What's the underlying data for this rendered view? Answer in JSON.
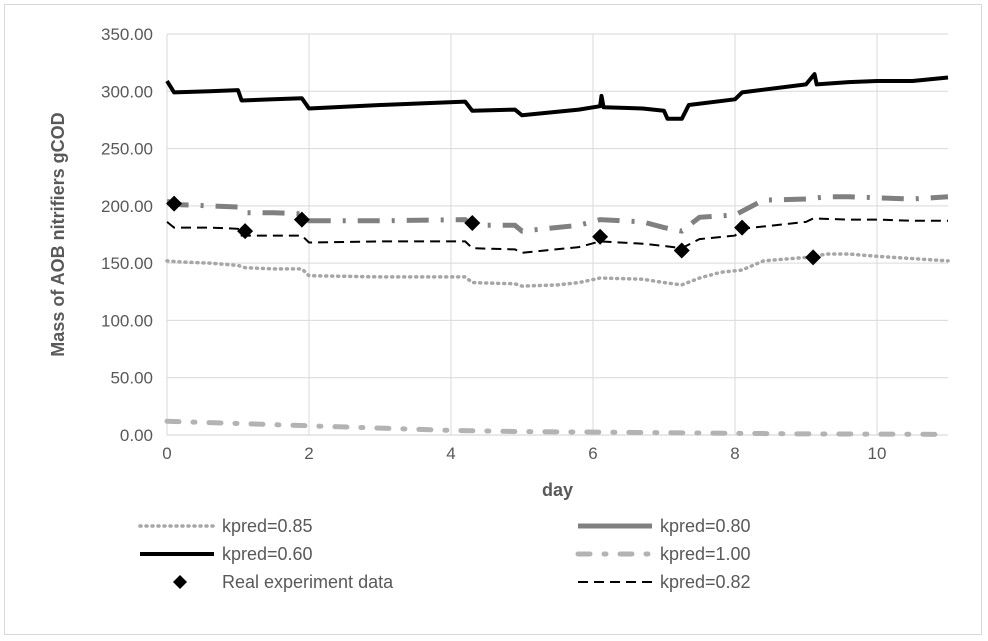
{
  "chart_data": {
    "type": "line",
    "title": "",
    "xlabel": "day",
    "ylabel": "Mass of AOB nitrifiers gCOD",
    "xlim": [
      0,
      11
    ],
    "ylim": [
      0,
      350
    ],
    "x_ticks": [
      0,
      2,
      4,
      6,
      8,
      10
    ],
    "y_ticks": [
      0,
      50,
      100,
      150,
      200,
      250,
      300,
      350
    ],
    "x_tick_labels": [
      "0",
      "2",
      "4",
      "6",
      "8",
      "10"
    ],
    "y_tick_labels": [
      "0.00",
      "50.00",
      "100.00",
      "150.00",
      "200.00",
      "250.00",
      "300.00",
      "350.00"
    ],
    "grid": "vertical and horizontal major gridlines",
    "legend_position": "bottom",
    "series": [
      {
        "name": "kpred=0.85",
        "style": "dotted",
        "color": "#a6a6a6",
        "points": [
          [
            0,
            152
          ],
          [
            0.2,
            151
          ],
          [
            0.6,
            150
          ],
          [
            1.0,
            148
          ],
          [
            1.1,
            146
          ],
          [
            1.5,
            145
          ],
          [
            1.9,
            145
          ],
          [
            2.0,
            139
          ],
          [
            3.0,
            138
          ],
          [
            4.2,
            138
          ],
          [
            4.3,
            133
          ],
          [
            4.9,
            132
          ],
          [
            5.0,
            130
          ],
          [
            5.5,
            131
          ],
          [
            5.8,
            133
          ],
          [
            6.1,
            137
          ],
          [
            6.7,
            136
          ],
          [
            7.0,
            133
          ],
          [
            7.25,
            131
          ],
          [
            7.5,
            137
          ],
          [
            7.8,
            142
          ],
          [
            8.1,
            144
          ],
          [
            8.4,
            152
          ],
          [
            9.0,
            155
          ],
          [
            9.3,
            158
          ],
          [
            9.6,
            158
          ],
          [
            10.0,
            156
          ],
          [
            10.5,
            154
          ],
          [
            11.0,
            152
          ]
        ]
      },
      {
        "name": "kpred=0.80",
        "style": "dash-dot heavy",
        "color": "#808080",
        "points": [
          [
            0,
            204
          ],
          [
            0.2,
            201
          ],
          [
            0.6,
            200
          ],
          [
            1.0,
            199
          ],
          [
            1.1,
            194
          ],
          [
            1.5,
            194
          ],
          [
            1.9,
            193
          ],
          [
            2.0,
            187
          ],
          [
            3.0,
            187
          ],
          [
            4.2,
            188
          ],
          [
            4.3,
            183
          ],
          [
            4.9,
            183
          ],
          [
            5.0,
            178
          ],
          [
            5.8,
            183
          ],
          [
            6.1,
            188
          ],
          [
            6.7,
            186
          ],
          [
            7.0,
            181
          ],
          [
            7.25,
            178
          ],
          [
            7.5,
            190
          ],
          [
            8.0,
            192
          ],
          [
            8.4,
            205
          ],
          [
            9.0,
            206
          ],
          [
            9.3,
            208
          ],
          [
            9.6,
            208
          ],
          [
            10.0,
            207
          ],
          [
            10.5,
            206
          ],
          [
            11.0,
            208
          ]
        ]
      },
      {
        "name": "kpred=0.60",
        "style": "solid heavy",
        "color": "#000000",
        "points": [
          [
            0,
            309
          ],
          [
            0.1,
            299
          ],
          [
            0.6,
            300
          ],
          [
            1.0,
            301
          ],
          [
            1.05,
            292
          ],
          [
            1.5,
            293
          ],
          [
            1.9,
            294
          ],
          [
            2.0,
            285
          ],
          [
            3.0,
            288
          ],
          [
            4.2,
            291
          ],
          [
            4.3,
            283
          ],
          [
            4.9,
            284
          ],
          [
            5.0,
            279
          ],
          [
            5.8,
            284
          ],
          [
            6.1,
            287
          ],
          [
            6.12,
            296
          ],
          [
            6.15,
            286
          ],
          [
            6.7,
            285
          ],
          [
            7.0,
            283
          ],
          [
            7.05,
            276
          ],
          [
            7.25,
            276
          ],
          [
            7.35,
            288
          ],
          [
            8.0,
            293
          ],
          [
            8.1,
            299
          ],
          [
            9.0,
            306
          ],
          [
            9.12,
            315
          ],
          [
            9.15,
            306
          ],
          [
            9.6,
            308
          ],
          [
            10.0,
            309
          ],
          [
            10.5,
            309
          ],
          [
            11.0,
            312
          ]
        ]
      },
      {
        "name": "kpred=1.00",
        "style": "dash-dot heavy",
        "color": "#b3b3b3",
        "points": [
          [
            0,
            12
          ],
          [
            1.0,
            10
          ],
          [
            2.0,
            8
          ],
          [
            3.0,
            6
          ],
          [
            4.0,
            4
          ],
          [
            5.0,
            3
          ],
          [
            6.0,
            2.5
          ],
          [
            7.0,
            2
          ],
          [
            8.0,
            1.5
          ],
          [
            9.0,
            1
          ],
          [
            10.0,
            0.8
          ],
          [
            11.0,
            0.5
          ]
        ]
      },
      {
        "name": "Real experiment data",
        "style": "markers",
        "marker": "diamond",
        "color": "#000000",
        "points": [
          [
            0.1,
            202
          ],
          [
            1.1,
            178
          ],
          [
            1.9,
            188
          ],
          [
            4.3,
            185
          ],
          [
            6.1,
            173
          ],
          [
            7.25,
            161
          ],
          [
            8.1,
            181
          ],
          [
            9.1,
            155
          ]
        ]
      },
      {
        "name": "kpred=0.82",
        "style": "dashed",
        "color": "#000000",
        "points": [
          [
            0,
            186
          ],
          [
            0.1,
            181
          ],
          [
            0.6,
            181
          ],
          [
            1.0,
            180
          ],
          [
            1.05,
            174
          ],
          [
            1.5,
            174
          ],
          [
            1.9,
            174
          ],
          [
            2.0,
            168
          ],
          [
            3.0,
            169
          ],
          [
            4.2,
            169
          ],
          [
            4.3,
            163
          ],
          [
            4.9,
            162
          ],
          [
            5.0,
            159
          ],
          [
            5.8,
            164
          ],
          [
            6.1,
            169
          ],
          [
            6.7,
            167
          ],
          [
            7.0,
            165
          ],
          [
            7.25,
            163
          ],
          [
            7.5,
            171
          ],
          [
            8.0,
            174
          ],
          [
            8.1,
            180
          ],
          [
            9.0,
            186
          ],
          [
            9.1,
            189
          ],
          [
            9.6,
            188
          ],
          [
            10.0,
            188
          ],
          [
            10.5,
            187
          ],
          [
            11.0,
            187
          ]
        ]
      }
    ]
  }
}
